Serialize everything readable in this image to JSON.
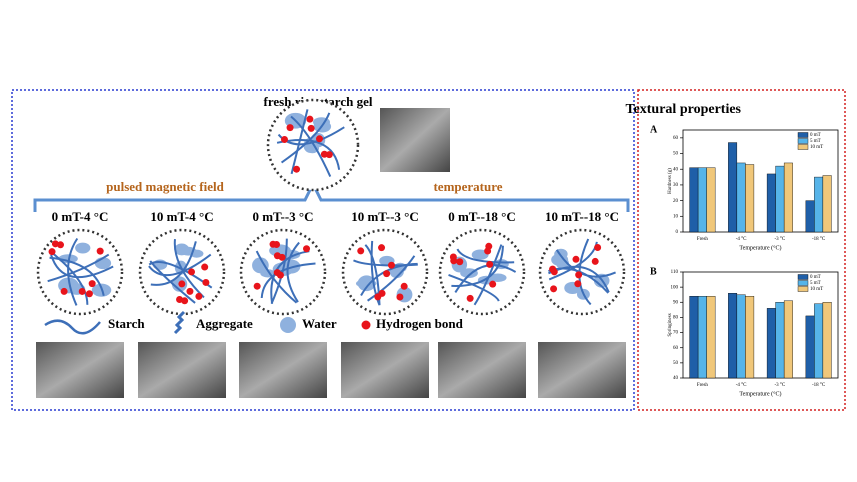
{
  "diagram": {
    "title": "fresh rice starch gel",
    "factors": [
      "pulsed magnetic field",
      "temperature"
    ],
    "conditions": [
      "0 mT-4 °C",
      "10 mT-4 °C",
      "0 mT--3 °C",
      "10 mT--3 °C",
      "0 mT--18 °C",
      "10 mT--18 °C"
    ],
    "legend": [
      "Starch",
      "Aggregate",
      "Water",
      "Hydrogen bond"
    ]
  },
  "panel_title": "Textural properties",
  "chart_data": [
    {
      "type": "bar",
      "label": "A",
      "y_label": "Hardness (g)",
      "x_label": "Temperature (°C)",
      "categories": [
        "Fresh",
        "-4 °C",
        "-3 °C",
        "-18 °C"
      ],
      "series": [
        {
          "name": "0 mT",
          "color": "#1f5fa8",
          "values": [
            41,
            57,
            37,
            20
          ]
        },
        {
          "name": "5 mT",
          "color": "#56b4e9",
          "values": [
            41,
            44,
            42,
            35
          ]
        },
        {
          "name": "10 mT",
          "color": "#f0c77a",
          "values": [
            41,
            43,
            44,
            36
          ]
        }
      ],
      "ylim": [
        0,
        65
      ],
      "yticks": [
        0,
        10,
        20,
        30,
        40,
        50,
        60
      ]
    },
    {
      "type": "bar",
      "label": "B",
      "y_label": "Springiness",
      "x_label": "Temperature (°C)",
      "categories": [
        "Fresh",
        "-4 °C",
        "-3 °C",
        "-18 °C"
      ],
      "series": [
        {
          "name": "0 mT",
          "color": "#1f5fa8",
          "values": [
            94,
            96,
            86,
            81
          ]
        },
        {
          "name": "5 mT",
          "color": "#56b4e9",
          "values": [
            94,
            95,
            90,
            89
          ]
        },
        {
          "name": "10 mT",
          "color": "#f0c77a",
          "values": [
            94,
            94,
            91,
            90
          ]
        }
      ],
      "ylim": [
        40,
        110
      ],
      "yticks": [
        40,
        50,
        60,
        70,
        80,
        90,
        100,
        110
      ]
    }
  ]
}
